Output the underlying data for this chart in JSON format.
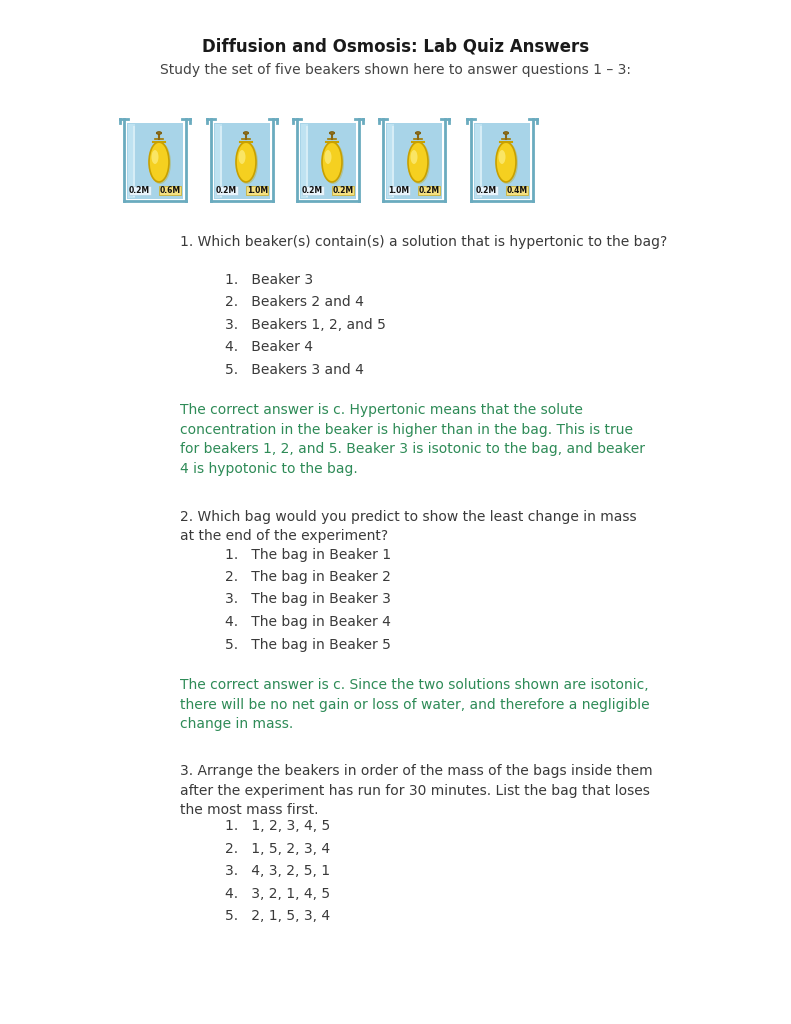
{
  "title": "Diffusion and Osmosis: Lab Quiz Answers",
  "subtitle": "Study the set of five beakers shown here to answer questions 1 – 3:",
  "bg_color": "#ffffff",
  "text_color": "#3a3a3a",
  "answer_color": "#2e8b57",
  "q1_text": "1. Which beaker(s) contain(s) a solution that is hypertonic to the bag?",
  "q1_options": [
    "1.   Beaker 3",
    "2.   Beakers 2 and 4",
    "3.   Beakers 1, 2, and 5",
    "4.   Beaker 4",
    "5.   Beakers 3 and 4"
  ],
  "q1_answer": "The correct answer is c. Hypertonic means that the solute\nconcentration in the beaker is higher than in the bag. This is true\nfor beakers 1, 2, and 5. Beaker 3 is isotonic to the bag, and beaker\n4 is hypotonic to the bag.",
  "q2_text": "2. Which bag would you predict to show the least change in mass\nat the end of the experiment?",
  "q2_options": [
    "1.   The bag in Beaker 1",
    "2.   The bag in Beaker 2",
    "3.   The bag in Beaker 3",
    "4.   The bag in Beaker 4",
    "5.   The bag in Beaker 5"
  ],
  "q2_answer": "The correct answer is c. Since the two solutions shown are isotonic,\nthere will be no net gain or loss of water, and therefore a negligible\nchange in mass.",
  "q3_text": "3. Arrange the beakers in order of the mass of the bags inside them\nafter the experiment has run for 30 minutes. List the bag that loses\nthe most mass first.",
  "q3_options": [
    "1.   1, 2, 3, 4, 5",
    "2.   1, 5, 2, 3, 4",
    "3.   4, 3, 2, 5, 1",
    "4.   3, 2, 1, 4, 5",
    "5.   2, 1, 5, 3, 4"
  ],
  "beaker_labels": [
    [
      "0.2M",
      "0.6M"
    ],
    [
      "0.2M",
      "1.0M"
    ],
    [
      "0.2M",
      "0.2M"
    ],
    [
      "1.0M",
      "0.2M"
    ],
    [
      "0.2M",
      "0.4M"
    ]
  ],
  "font_size_title": 12,
  "font_size_subtitle": 10,
  "font_size_body": 10,
  "font_size_options": 10,
  "font_size_answer": 10
}
